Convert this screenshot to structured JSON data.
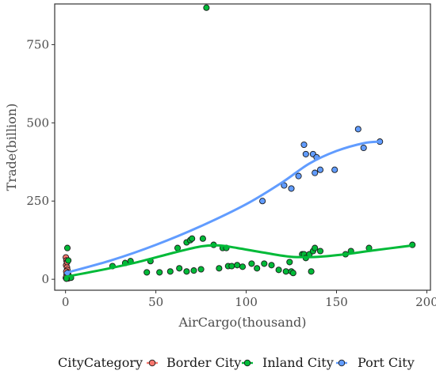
{
  "chart_data": {
    "type": "scatter",
    "title": "",
    "xlabel": "AirCargo(thousand)",
    "ylabel": "Trade(billion)",
    "xlim": [
      -6,
      202
    ],
    "ylim": [
      -35,
      880
    ],
    "x_ticks": [
      0,
      50,
      100,
      150,
      200
    ],
    "y_ticks": [
      0,
      250,
      500,
      750
    ],
    "grid": false,
    "legend": {
      "title": "CityCategory",
      "placement": "bottom",
      "entries": [
        "Border City",
        "Inland City",
        "Port City"
      ]
    },
    "series": [
      {
        "name": "Border City",
        "color": "#F8766D",
        "points": [
          [
            0.2,
            70
          ],
          [
            0.5,
            60
          ],
          [
            0.3,
            45
          ],
          [
            0.8,
            38
          ],
          [
            1.0,
            30
          ],
          [
            0.4,
            25
          ],
          [
            1.3,
            20
          ],
          [
            0.6,
            15
          ],
          [
            1.1,
            10
          ],
          [
            0.2,
            5
          ],
          [
            1.5,
            3
          ],
          [
            0.9,
            55
          ]
        ]
      },
      {
        "name": "Inland City",
        "color": "#00BA38",
        "points": [
          [
            1,
            100
          ],
          [
            1.5,
            60
          ],
          [
            2,
            10
          ],
          [
            3,
            5
          ],
          [
            0.5,
            2
          ],
          [
            26,
            42
          ],
          [
            33,
            52
          ],
          [
            36,
            58
          ],
          [
            45,
            22
          ],
          [
            47,
            58
          ],
          [
            52,
            22
          ],
          [
            58,
            25
          ],
          [
            62,
            100
          ],
          [
            63,
            35
          ],
          [
            67,
            25
          ],
          [
            67,
            118
          ],
          [
            69,
            125
          ],
          [
            70,
            130
          ],
          [
            71,
            28
          ],
          [
            75,
            32
          ],
          [
            76,
            130
          ],
          [
            78,
            868
          ],
          [
            82,
            110
          ],
          [
            85,
            35
          ],
          [
            87,
            100
          ],
          [
            89,
            100
          ],
          [
            90,
            42
          ],
          [
            92,
            42
          ],
          [
            95,
            45
          ],
          [
            98,
            40
          ],
          [
            103,
            50
          ],
          [
            106,
            35
          ],
          [
            110,
            50
          ],
          [
            114,
            45
          ],
          [
            118,
            30
          ],
          [
            122,
            25
          ],
          [
            124,
            55
          ],
          [
            125,
            25
          ],
          [
            126,
            20
          ],
          [
            131,
            80
          ],
          [
            132,
            80
          ],
          [
            133,
            68
          ],
          [
            135,
            80
          ],
          [
            136,
            25
          ],
          [
            137,
            90
          ],
          [
            138,
            100
          ],
          [
            141,
            90
          ],
          [
            155,
            80
          ],
          [
            158,
            90
          ],
          [
            168,
            100
          ],
          [
            192,
            110
          ]
        ],
        "trend": [
          [
            0,
            8
          ],
          [
            20,
            30
          ],
          [
            40,
            55
          ],
          [
            60,
            85
          ],
          [
            75,
            105
          ],
          [
            85,
            108
          ],
          [
            95,
            100
          ],
          [
            110,
            85
          ],
          [
            125,
            72
          ],
          [
            140,
            72
          ],
          [
            155,
            80
          ],
          [
            170,
            92
          ],
          [
            192,
            108
          ]
        ]
      },
      {
        "name": "Port City",
        "color": "#619CFF",
        "points": [
          [
            1,
            20
          ],
          [
            109,
            250
          ],
          [
            121,
            300
          ],
          [
            125,
            290
          ],
          [
            129,
            330
          ],
          [
            132,
            430
          ],
          [
            133,
            400
          ],
          [
            137,
            400
          ],
          [
            138,
            340
          ],
          [
            139,
            390
          ],
          [
            141,
            350
          ],
          [
            149,
            350
          ],
          [
            162,
            480
          ],
          [
            165,
            420
          ],
          [
            174,
            440
          ]
        ],
        "trend": [
          [
            0,
            20
          ],
          [
            25,
            60
          ],
          [
            50,
            110
          ],
          [
            75,
            170
          ],
          [
            100,
            240
          ],
          [
            120,
            310
          ],
          [
            135,
            370
          ],
          [
            150,
            410
          ],
          [
            165,
            435
          ],
          [
            174,
            440
          ]
        ]
      }
    ]
  }
}
